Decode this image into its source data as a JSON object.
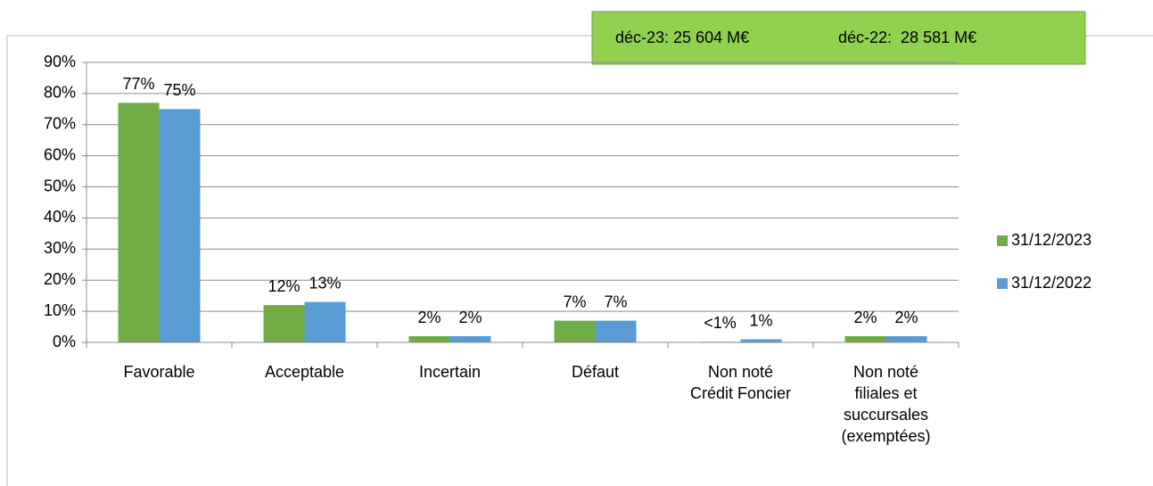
{
  "chart_data": {
    "type": "bar",
    "annotations": [
      "déc-23: 25 604 M€",
      "déc-22:  28 581 M€"
    ],
    "categories": [
      "Favorable",
      "Acceptable",
      "Incertain",
      "Défaut",
      "Non noté\nCrédit Foncier",
      "Non noté\nfiliales et\nsuccursales\n(exemptées)"
    ],
    "series": [
      {
        "name": "31/12/2023",
        "color": "#70ad47",
        "values": [
          77,
          12,
          2,
          7,
          0.2,
          2
        ],
        "value_labels": [
          "77%",
          "12%",
          "2%",
          "7%",
          "<1%",
          "2%"
        ]
      },
      {
        "name": "31/12/2022",
        "color": "#5b9bd5",
        "values": [
          75,
          13,
          2,
          7,
          1,
          2
        ],
        "value_labels": [
          "75%",
          "13%",
          "2%",
          "7%",
          "1%",
          "2%"
        ]
      }
    ],
    "ylim": [
      0,
      90
    ],
    "yticks": [
      {
        "value": 0,
        "label": "0%"
      },
      {
        "value": 10,
        "label": "10%"
      },
      {
        "value": 20,
        "label": "20%"
      },
      {
        "value": 30,
        "label": "30%"
      },
      {
        "value": 40,
        "label": "40%"
      },
      {
        "value": 50,
        "label": "50%"
      },
      {
        "value": 60,
        "label": "60%"
      },
      {
        "value": 70,
        "label": "70%"
      },
      {
        "value": 80,
        "label": "80%"
      },
      {
        "value": 90,
        "label": "90%"
      }
    ],
    "grid": true,
    "legend": "right"
  }
}
